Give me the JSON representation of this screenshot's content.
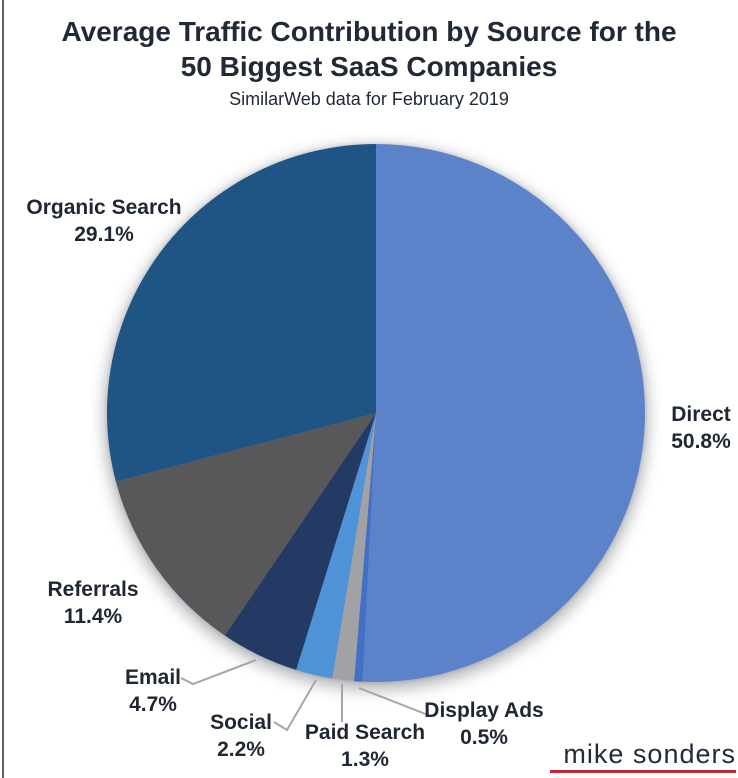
{
  "header": {
    "title_line1": "Average Traffic Contribution by Source for the",
    "title_line2": "50 Biggest SaaS Companies",
    "subtitle": "SimilarWeb data for February 2019"
  },
  "chart_data": {
    "type": "pie",
    "title": "Average Traffic Contribution by Source for the 50 Biggest SaaS Companies",
    "subtitle": "SimilarWeb data for February 2019",
    "unit": "%",
    "start_angle_deg": 0,
    "direction": "clockwise",
    "slices": [
      {
        "label": "Direct",
        "value": 50.8,
        "color": "#5c83c9"
      },
      {
        "label": "Display Ads",
        "value": 0.5,
        "color": "#4170c4"
      },
      {
        "label": "Paid Search",
        "value": 1.3,
        "color": "#a0a2a6"
      },
      {
        "label": "Social",
        "value": 2.2,
        "color": "#4f93d8"
      },
      {
        "label": "Email",
        "value": 4.7,
        "color": "#233a64"
      },
      {
        "label": "Referrals",
        "value": 11.4,
        "color": "#58585a"
      },
      {
        "label": "Organic Search",
        "value": 29.1,
        "color": "#1f5584"
      }
    ],
    "leader_line_color": "#a6a6a6",
    "label_color": "#1f2733"
  },
  "footer": {
    "logo_text": "mike sonders",
    "logo_underline_color": "#bf2734"
  }
}
